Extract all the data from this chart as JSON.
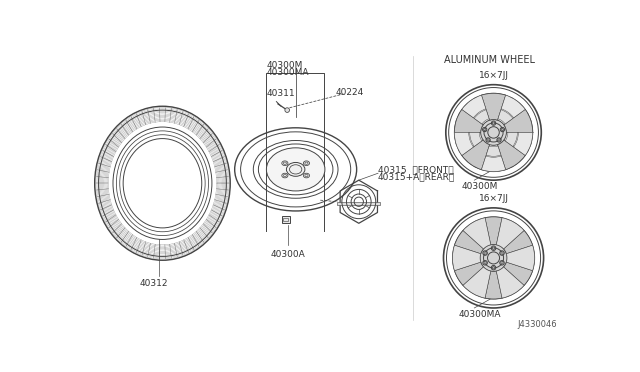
{
  "bg_color": "#ffffff",
  "line_color": "#444444",
  "section_label": "ALUMINUM WHEEL",
  "wheel1_label": "16×7JJ",
  "wheel1_partnum": "40300M",
  "wheel2_label": "16×7JJ",
  "wheel2_partnum": "40300MA",
  "diagram_partnum": "J4330046",
  "font_size": 6.5,
  "lw": 0.7
}
